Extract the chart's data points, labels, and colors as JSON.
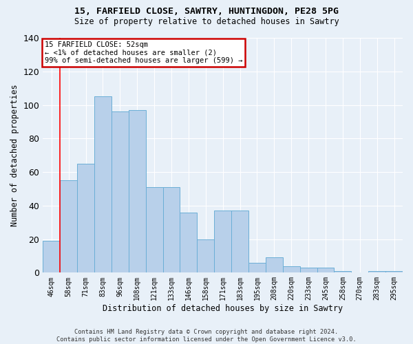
{
  "title_line1": "15, FARFIELD CLOSE, SAWTRY, HUNTINGDON, PE28 5PG",
  "title_line2": "Size of property relative to detached houses in Sawtry",
  "xlabel": "Distribution of detached houses by size in Sawtry",
  "ylabel": "Number of detached properties",
  "categories": [
    "46sqm",
    "58sqm",
    "71sqm",
    "83sqm",
    "96sqm",
    "108sqm",
    "121sqm",
    "133sqm",
    "146sqm",
    "158sqm",
    "171sqm",
    "183sqm",
    "195sqm",
    "208sqm",
    "220sqm",
    "233sqm",
    "245sqm",
    "258sqm",
    "270sqm",
    "283sqm",
    "295sqm"
  ],
  "values": [
    19,
    55,
    65,
    105,
    96,
    97,
    51,
    51,
    36,
    20,
    37,
    37,
    6,
    9,
    4,
    3,
    3,
    1,
    0,
    1,
    1
  ],
  "bar_color": "#b8d0ea",
  "bar_edge_color": "#6aaed6",
  "background_color": "#e8f0f8",
  "grid_color": "#ffffff",
  "red_line_x": 0.5,
  "annotation_text": "15 FARFIELD CLOSE: 52sqm\n← <1% of detached houses are smaller (2)\n99% of semi-detached houses are larger (599) →",
  "annotation_box_color": "#ffffff",
  "annotation_box_edge_color": "#cc0000",
  "ylim": [
    0,
    140
  ],
  "yticks": [
    0,
    20,
    40,
    60,
    80,
    100,
    120,
    140
  ],
  "footnote": "Contains HM Land Registry data © Crown copyright and database right 2024.\nContains public sector information licensed under the Open Government Licence v3.0."
}
